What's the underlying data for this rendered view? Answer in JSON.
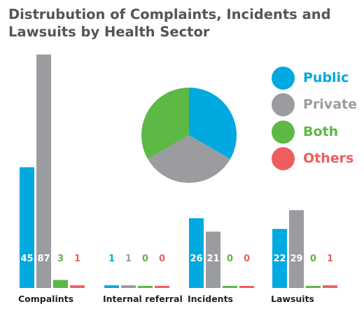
{
  "chart_data": {
    "type": "bar",
    "title": "Distrubution of Complaints, Incidents and Lawsuits by Health Sector",
    "categories": [
      "Compalints",
      "Internal referral",
      "Incidents",
      "Lawsuits"
    ],
    "series": [
      {
        "name": "Public",
        "color": "#00a9e0",
        "values": [
          45,
          1,
          26,
          22
        ]
      },
      {
        "name": "Private",
        "color": "#9a9ca0",
        "values": [
          87,
          1,
          21,
          29
        ]
      },
      {
        "name": "Both",
        "color": "#5db845",
        "values": [
          3,
          0,
          0,
          0
        ]
      },
      {
        "name": "Others",
        "color": "#ee5e5e",
        "values": [
          1,
          0,
          0,
          1
        ]
      }
    ],
    "pie": {
      "slices": [
        {
          "name": "Public",
          "value": 1,
          "color": "#00a9e0"
        },
        {
          "name": "Private",
          "value": 1,
          "color": "#9a9ca0"
        },
        {
          "name": "Both",
          "value": 1,
          "color": "#5db845"
        }
      ]
    },
    "legend_position": "top-right",
    "grid": false
  }
}
